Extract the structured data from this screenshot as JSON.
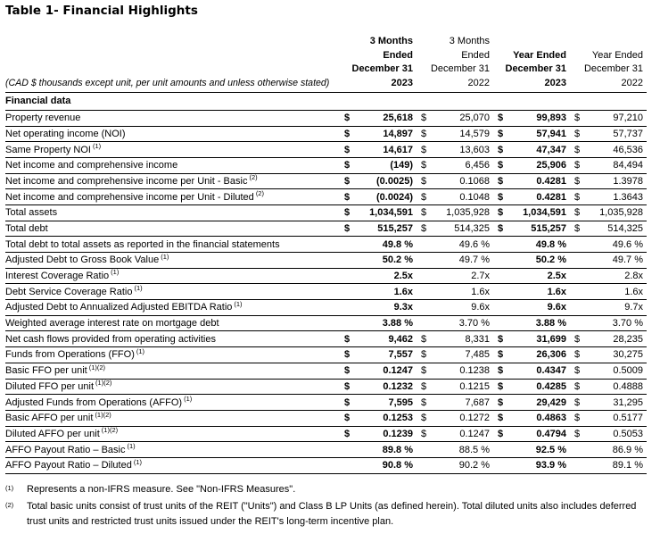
{
  "title": "Table 1- Financial Highlights",
  "note": "(CAD $ thousands except unit, per unit amounts and unless otherwise stated)",
  "section_header": "Financial data",
  "currency_symbol": "$",
  "columns": [
    {
      "lines": [
        "3 Months",
        "Ended",
        "December 31",
        "2023"
      ],
      "bold": true
    },
    {
      "lines": [
        "3 Months",
        "Ended",
        "December 31",
        "2022"
      ],
      "bold": false
    },
    {
      "lines": [
        "Year Ended",
        "December 31",
        "2023"
      ],
      "bold": true
    },
    {
      "lines": [
        "Year Ended",
        "December 31",
        "2022"
      ],
      "bold": false
    }
  ],
  "rows": [
    {
      "label": "Property revenue",
      "sup": "",
      "currency": true,
      "values": [
        "25,618",
        "25,070",
        "99,893",
        "97,210"
      ]
    },
    {
      "label": "Net operating income (NOI)",
      "sup": "",
      "currency": true,
      "values": [
        "14,897",
        "14,579",
        "57,941",
        "57,737"
      ]
    },
    {
      "label": "Same Property NOI",
      "sup": "(1)",
      "currency": true,
      "values": [
        "14,617",
        "13,603",
        "47,347",
        "46,536"
      ]
    },
    {
      "label": "Net income and comprehensive income",
      "sup": "",
      "currency": true,
      "values": [
        "(149)",
        "6,456",
        "25,906",
        "84,494"
      ]
    },
    {
      "label": "Net income and comprehensive income per Unit - Basic",
      "sup": "(2)",
      "currency": true,
      "values": [
        "(0.0025)",
        "0.1068",
        "0.4281",
        "1.3978"
      ]
    },
    {
      "label": "Net income and comprehensive income per Unit - Diluted",
      "sup": "(2)",
      "currency": true,
      "values": [
        "(0.0024)",
        "0.1048",
        "0.4281",
        "1.3643"
      ]
    },
    {
      "label": "Total assets",
      "sup": "",
      "currency": true,
      "values": [
        "1,034,591",
        "1,035,928",
        "1,034,591",
        "1,035,928"
      ]
    },
    {
      "label": "Total debt",
      "sup": "",
      "currency": true,
      "values": [
        "515,257",
        "514,325",
        "515,257",
        "514,325"
      ]
    },
    {
      "label": "Total debt to total assets as reported in the financial statements",
      "sup": "",
      "currency": false,
      "values": [
        "49.8 %",
        "49.6 %",
        "49.8 %",
        "49.6 %"
      ]
    },
    {
      "label": "Adjusted Debt to Gross Book Value",
      "sup": "(1)",
      "currency": false,
      "values": [
        "50.2 %",
        "49.7 %",
        "50.2 %",
        "49.7 %"
      ]
    },
    {
      "label": "Interest Coverage Ratio",
      "sup": "(1)",
      "currency": false,
      "values": [
        "2.5x",
        "2.7x",
        "2.5x",
        "2.8x"
      ]
    },
    {
      "label": "Debt Service Coverage Ratio",
      "sup": "(1)",
      "currency": false,
      "values": [
        "1.6x",
        "1.6x",
        "1.6x",
        "1.6x"
      ]
    },
    {
      "label": "Adjusted Debt to Annualized Adjusted EBITDA Ratio",
      "sup": "(1)",
      "currency": false,
      "values": [
        "9.3x",
        "9.6x",
        "9.6x",
        "9.7x"
      ]
    },
    {
      "label": "Weighted average interest rate on mortgage debt",
      "sup": "",
      "currency": false,
      "values": [
        "3.88 %",
        "3.70 %",
        "3.88 %",
        "3.70 %"
      ]
    },
    {
      "label": "Net cash flows provided from operating activities",
      "sup": "",
      "currency": true,
      "values": [
        "9,462",
        "8,331",
        "31,699",
        "28,235"
      ]
    },
    {
      "label": "Funds from Operations (FFO)",
      "sup": "(1)",
      "currency": true,
      "values": [
        "7,557",
        "7,485",
        "26,306",
        "30,275"
      ]
    },
    {
      "label": "Basic FFO per unit",
      "sup": "(1)(2)",
      "currency": true,
      "values": [
        "0.1247",
        "0.1238",
        "0.4347",
        "0.5009"
      ]
    },
    {
      "label": "Diluted FFO per unit",
      "sup": "(1)(2)",
      "currency": true,
      "values": [
        "0.1232",
        "0.1215",
        "0.4285",
        "0.4888"
      ]
    },
    {
      "label": "Adjusted Funds from Operations (AFFO)",
      "sup": "(1)",
      "currency": true,
      "values": [
        "7,595",
        "7,687",
        "29,429",
        "31,295"
      ]
    },
    {
      "label": "Basic AFFO per unit",
      "sup": "(1)(2)",
      "currency": true,
      "values": [
        "0.1253",
        "0.1272",
        "0.4863",
        "0.5177"
      ]
    },
    {
      "label": "Diluted AFFO per unit",
      "sup": "(1)(2)",
      "currency": true,
      "values": [
        "0.1239",
        "0.1247",
        "0.4794",
        "0.5053"
      ]
    },
    {
      "label": "AFFO Payout Ratio – Basic",
      "sup": "(1)",
      "currency": false,
      "values": [
        "89.8 %",
        "88.5 %",
        "92.5 %",
        "86.9 %"
      ]
    },
    {
      "label": "AFFO Payout Ratio – Diluted",
      "sup": "(1)",
      "currency": false,
      "values": [
        "90.8 %",
        "90.2 %",
        "93.9 %",
        "89.1 %"
      ]
    }
  ],
  "footnotes": [
    {
      "marker": "(1)",
      "text": "Represents a non-IFRS measure. See \"Non-IFRS Measures\"."
    },
    {
      "marker": "(2)",
      "text": "Total basic units consist of trust units of the REIT (\"Units\") and Class B LP Units (as defined herein). Total diluted units also includes deferred trust units and restricted trust units issued under the REIT's long-term incentive plan."
    }
  ]
}
